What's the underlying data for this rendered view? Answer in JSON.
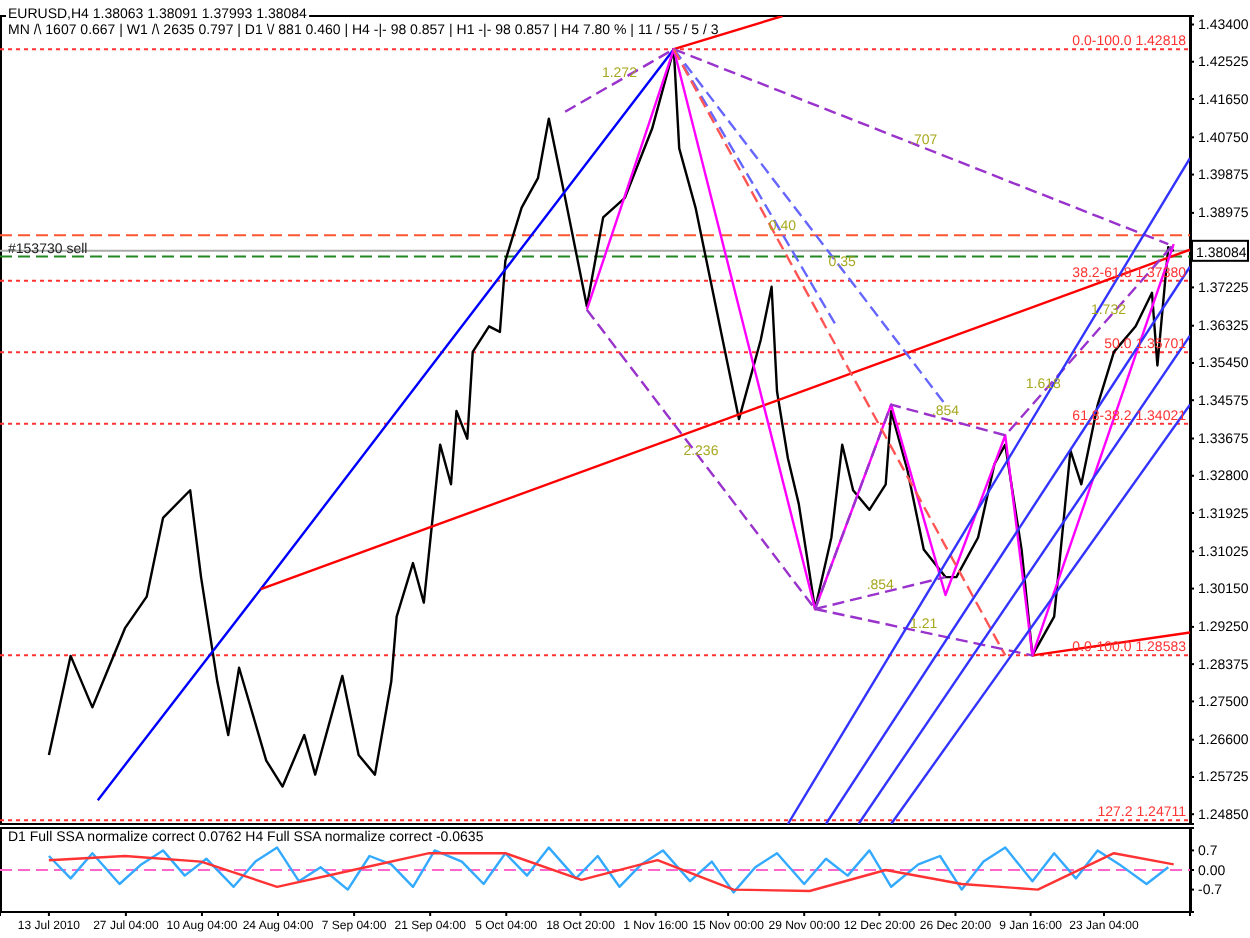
{
  "chart_data": [
    {
      "type": "line",
      "xlim": [
        "2010-07-04",
        "2011-02-08"
      ],
      "ylim": [
        1.2462,
        1.436
      ],
      "tick_labels": "y",
      "grid": false,
      "marker": "none",
      "yticks": [
        {
          "value": 1.434,
          "label": "1.43400"
        },
        {
          "value": 1.42525,
          "label": "1.42525"
        },
        {
          "value": 1.4165,
          "label": "1.41650"
        },
        {
          "value": 1.4075,
          "label": "1.40750"
        },
        {
          "value": 1.39875,
          "label": "1.39875"
        },
        {
          "value": 1.38975,
          "label": "1.38975"
        },
        {
          "value": 1.37225,
          "label": "1.37225"
        },
        {
          "value": 1.36325,
          "label": "1.36325"
        },
        {
          "value": 1.3545,
          "label": "1.35450"
        },
        {
          "value": 1.34575,
          "label": "1.34575"
        },
        {
          "value": 1.33675,
          "label": "1.33675"
        },
        {
          "value": 1.328,
          "label": "1.32800"
        },
        {
          "value": 1.31925,
          "label": "1.31925"
        },
        {
          "value": 1.31025,
          "label": "1.31025"
        },
        {
          "value": 1.3015,
          "label": "1.30150"
        },
        {
          "value": 1.2925,
          "label": "1.29250"
        },
        {
          "value": 1.28375,
          "label": "1.28375"
        },
        {
          "value": 1.275,
          "label": "1.27500"
        },
        {
          "value": 1.266,
          "label": "1.26600"
        },
        {
          "value": 1.25725,
          "label": "1.25725"
        },
        {
          "value": 1.2485,
          "label": "1.24850"
        }
      ],
      "series": [
        {
          "color": "#000000",
          "line_style": "solid",
          "x": [
            "2010-07-13",
            "2010-07-17",
            "2010-07-21",
            "2010-07-24",
            "2010-07-27",
            "2010-07-31",
            "2010-08-03",
            "2010-08-08",
            "2010-08-10",
            "2010-08-13",
            "2010-08-15",
            "2010-08-17",
            "2010-08-22",
            "2010-08-25",
            "2010-08-29",
            "2010-08-31",
            "2010-09-05",
            "2010-09-08",
            "2010-09-11",
            "2010-09-14",
            "2010-09-15",
            "2010-09-18",
            "2010-09-20",
            "2010-09-22",
            "2010-09-23",
            "2010-09-25",
            "2010-09-26",
            "2010-09-28",
            "2010-09-29",
            "2010-10-02",
            "2010-10-04",
            "2010-10-05",
            "2010-10-08",
            "2010-10-11",
            "2010-10-13",
            "2010-10-16",
            "2010-10-20",
            "2010-10-23",
            "2010-10-27",
            "2010-11-01",
            "2010-11-05",
            "2010-11-06",
            "2010-11-09",
            "2010-11-12",
            "2010-11-14",
            "2010-11-17",
            "2010-11-21",
            "2010-11-23",
            "2010-11-24",
            "2010-11-26",
            "2010-11-28",
            "2010-12-01",
            "2010-12-04",
            "2010-12-06",
            "2010-12-08",
            "2010-12-11",
            "2010-12-14",
            "2010-12-15",
            "2010-12-18",
            "2010-12-21",
            "2010-12-25",
            "2010-12-27",
            "2010-12-31",
            "2011-01-03",
            "2011-01-05",
            "2011-01-08",
            "2011-01-10",
            "2011-01-14",
            "2011-01-17",
            "2011-01-19",
            "2011-01-22",
            "2011-01-25",
            "2011-01-29",
            "2011-02-01",
            "2011-02-02",
            "2011-02-04",
            "2011-02-05"
          ],
          "values": [
            1.2624,
            1.2857,
            1.2736,
            1.2829,
            1.2922,
            1.2996,
            1.3181,
            1.3246,
            1.3042,
            1.2796,
            1.2671,
            1.2829,
            1.2611,
            1.255,
            1.2671,
            1.2578,
            1.281,
            1.2624,
            1.2578,
            1.2796,
            1.2949,
            1.3075,
            1.2982,
            1.3228,
            1.3353,
            1.326,
            1.3432,
            1.3367,
            1.3571,
            1.3631,
            1.3618,
            1.3785,
            1.391,
            1.3979,
            1.4119,
            1.3933,
            1.3678,
            1.3887,
            1.3933,
            1.4095,
            1.4282,
            1.4049,
            1.391,
            1.3724,
            1.3599,
            1.3413,
            1.3599,
            1.3724,
            1.3478,
            1.3321,
            1.3214,
            1.2967,
            1.3135,
            1.3353,
            1.3246,
            1.32,
            1.326,
            1.3432,
            1.3293,
            1.3107,
            1.3042,
            1.3042,
            1.3135,
            1.3307,
            1.3353,
            1.3107,
            1.2858,
            1.2949,
            1.3339,
            1.326,
            1.3446,
            1.3571,
            1.3631,
            1.371,
            1.3539,
            1.3817,
            1.3808
          ]
        },
        {
          "color": "#0000ff",
          "line_style": "solid",
          "x": [
            "2010-07-22",
            "2010-08-21",
            "2010-11-05"
          ],
          "values": [
            1.2518,
            1.3014,
            1.4282
          ]
        },
        {
          "color": "#ff0000",
          "line_style": "solid",
          "x": [
            "2010-08-21",
            "2011-02-08"
          ],
          "values": [
            1.3014,
            1.3811
          ]
        },
        {
          "color": "#ff0000",
          "line_style": "solid",
          "x": [
            "2010-11-05",
            "2010-11-25"
          ],
          "values": [
            1.4282,
            1.436
          ]
        },
        {
          "color": "#ff0000",
          "line_style": "solid",
          "x": [
            "2011-01-10",
            "2011-02-08"
          ],
          "values": [
            1.2858,
            1.2912
          ]
        },
        {
          "color": "#ff00ff",
          "line_style": "solid",
          "x": [
            "2010-10-20",
            "2010-11-05",
            "2010-12-01",
            "2010-12-15",
            "2010-12-25",
            "2011-01-05",
            "2011-01-10",
            "2011-02-05"
          ],
          "values": [
            1.367,
            1.4282,
            1.2967,
            1.3447,
            1.3,
            1.3375,
            1.2858,
            1.3824
          ]
        },
        {
          "color": "#9933cc",
          "line_style": "dashed",
          "x": [
            "2010-11-05",
            "2011-02-04"
          ],
          "values": [
            1.4282,
            1.3824
          ]
        },
        {
          "color": "#9933cc",
          "line_style": "dashed",
          "x": [
            "2010-10-16",
            "2010-11-05"
          ],
          "values": [
            1.4135,
            1.4282
          ]
        },
        {
          "color": "#9933cc",
          "line_style": "dashed",
          "x": [
            "2010-12-01",
            "2010-12-15",
            "2011-01-05",
            "2011-02-05"
          ],
          "values": [
            1.2967,
            1.3447,
            1.3375,
            1.3824
          ]
        },
        {
          "color": "#9933cc",
          "line_style": "dashed",
          "x": [
            "2010-10-20",
            "2010-12-01"
          ],
          "values": [
            1.367,
            1.2967
          ]
        },
        {
          "color": "#9933cc",
          "line_style": "dashed",
          "x": [
            "2010-12-01",
            "2010-12-25"
          ],
          "values": [
            1.2967,
            1.3042
          ]
        },
        {
          "color": "#9933cc",
          "line_style": "dashed",
          "x": [
            "2010-12-01",
            "2011-01-10"
          ],
          "values": [
            1.2967,
            1.2858
          ]
        },
        {
          "color": "#6666ff",
          "line_style": "dashed",
          "x": [
            "2010-11-05",
            "2010-12-05"
          ],
          "values": [
            1.4282,
            1.363
          ]
        },
        {
          "color": "#6666ff",
          "line_style": "dashed",
          "x": [
            "2010-11-05",
            "2010-12-25"
          ],
          "values": [
            1.4282,
            1.3447
          ]
        },
        {
          "color": "#ff5555",
          "line_style": "dashed",
          "x": [
            "2010-11-05",
            "2011-01-05"
          ],
          "values": [
            1.4282,
            1.2858
          ]
        },
        {
          "color": "#3333ff",
          "line_style": "solid",
          "x": [
            "2010-11-26",
            "2011-02-08"
          ],
          "values": [
            1.2462,
            1.4026
          ]
        },
        {
          "color": "#3333ff",
          "line_style": "solid",
          "x": [
            "2010-12-03",
            "2011-02-08"
          ],
          "values": [
            1.2462,
            1.3771
          ]
        },
        {
          "color": "#3333ff",
          "line_style": "solid",
          "x": [
            "2010-12-09",
            "2011-02-08"
          ],
          "values": [
            1.2462,
            1.3609
          ]
        },
        {
          "color": "#3333ff",
          "line_style": "solid",
          "x": [
            "2010-12-15",
            "2011-02-08"
          ],
          "values": [
            1.2462,
            1.3447
          ]
        }
      ],
      "ref_lines": [
        {
          "axis": "y",
          "value": 1.42818,
          "label": "0.0-100.0 1.42818",
          "color": "#ff3333",
          "line_style": "dotted"
        },
        {
          "axis": "y",
          "value": 1.3738,
          "label": "38.2-61.8 1.37380",
          "color": "#ff3333",
          "line_style": "dotted"
        },
        {
          "axis": "y",
          "value": 1.35701,
          "label": "50.0 1.35701",
          "color": "#ff3333",
          "line_style": "dotted"
        },
        {
          "axis": "y",
          "value": 1.34021,
          "label": "61.8-38.2 1.34021",
          "color": "#ff3333",
          "line_style": "dotted"
        },
        {
          "axis": "y",
          "value": 1.28583,
          "label": "0.0-100.0 1.28583",
          "color": "#ff3333",
          "line_style": "dotted"
        },
        {
          "axis": "y",
          "value": 1.24711,
          "label": "127.2 1.24711",
          "color": "#ff3333",
          "line_style": "dotted"
        },
        {
          "axis": "y",
          "value": 1.3845,
          "color": "#ff5533",
          "line_style": "dashed"
        },
        {
          "axis": "y",
          "value": 1.3795,
          "label": "#153730 sell",
          "color": "#228822",
          "line_style": "dashed"
        },
        {
          "axis": "y",
          "value": 1.38084,
          "label": "1.38084",
          "color": "#aaaaaa",
          "line_style": "solid"
        }
      ],
      "annotations": [
        "EURUSD,H4 1.38063 1.38091 1.37993 1.38084",
        "MN /\\ 1607 0.667 | W1 /\\ 2635 0.797 | D1 \\/ 881 0.460 | H4 -|- 98 0.857 | H1 -|- 98 0.857 | H4 7.80 % | 11 / 55 / 5 / 3",
        {
          "text": "1.272",
          "x": "2010-10-26",
          "y": 1.4208
        },
        {
          "text": ".707",
          "x": "2010-12-21",
          "y": 1.4051
        },
        {
          "text": "0.40",
          "x": "2010-11-25",
          "y": 1.3847
        },
        {
          "text": "0.35",
          "x": "2010-12-06",
          "y": 1.3764
        },
        {
          "text": "1.618",
          "x": "2011-01-12",
          "y": 1.3476
        },
        {
          "text": "1.732",
          "x": "2011-01-24",
          "y": 1.365
        },
        {
          "text": "2.236",
          "x": "2010-11-10",
          "y": 1.3319
        },
        {
          "text": ".854",
          "x": "2010-12-25",
          "y": 1.3413
        },
        {
          "text": ".854",
          "x": "2010-12-13",
          "y": 1.3004
        },
        {
          "text": "1.21",
          "x": "2010-12-21",
          "y": 1.2912
        }
      ]
    },
    {
      "type": "line",
      "xlim": [
        "2010-07-04",
        "2011-02-08"
      ],
      "ylim": [
        -1.5,
        1.5
      ],
      "grid": false,
      "marker": "none",
      "xticks": [
        {
          "value": "2010-07-13",
          "label": "13 Jul 2010"
        },
        {
          "value": "2010-07-27T04:00",
          "label": "27 Jul 04:00"
        },
        {
          "value": "2010-08-10T04:00",
          "label": "10 Aug 04:00"
        },
        {
          "value": "2010-08-24T04:00",
          "label": "24 Aug 04:00"
        },
        {
          "value": "2010-09-07T04:00",
          "label": "7 Sep 04:00"
        },
        {
          "value": "2010-09-21T04:00",
          "label": "21 Sep 04:00"
        },
        {
          "value": "2010-10-05T04:00",
          "label": "5 Oct 04:00"
        },
        {
          "value": "2010-10-18T20:00",
          "label": "18 Oct 20:00"
        },
        {
          "value": "2010-11-01T16:00",
          "label": "1 Nov 16:00"
        },
        {
          "value": "2010-11-15T00:00",
          "label": "15 Nov 00:00"
        },
        {
          "value": "2010-11-29T00:00",
          "label": "29 Nov 00:00"
        },
        {
          "value": "2010-12-12T20:00",
          "label": "12 Dec 20:00"
        },
        {
          "value": "2010-12-26T20:00",
          "label": "26 Dec 20:00"
        },
        {
          "value": "2011-01-09T16:00",
          "label": "9 Jan 16:00"
        },
        {
          "value": "2011-01-23T04:00",
          "label": "23 Jan 04:00"
        }
      ],
      "yticks": [
        0.7,
        {
          "value": 0,
          "label": "0.00"
        },
        -0.7
      ],
      "series": [
        {
          "color": "#33aaff",
          "line_style": "solid",
          "x": [
            "2010-07-13",
            "2010-07-17",
            "2010-07-21",
            "2010-07-26",
            "2010-07-30",
            "2010-08-03",
            "2010-08-07",
            "2010-08-11",
            "2010-08-16",
            "2010-08-20",
            "2010-08-24",
            "2010-08-28",
            "2010-09-01",
            "2010-09-06",
            "2010-09-10",
            "2010-09-14",
            "2010-09-18",
            "2010-09-22",
            "2010-09-27",
            "2010-10-01",
            "2010-10-05",
            "2010-10-09",
            "2010-10-13",
            "2010-10-18",
            "2010-10-22",
            "2010-10-26",
            "2010-10-30",
            "2010-11-03",
            "2010-11-08",
            "2010-11-12",
            "2010-11-16",
            "2010-11-20",
            "2010-11-24",
            "2010-11-29",
            "2010-12-03",
            "2010-12-07",
            "2010-12-11",
            "2010-12-15",
            "2010-12-20",
            "2010-12-24",
            "2010-12-28",
            "2011-01-01",
            "2011-01-05",
            "2011-01-10",
            "2011-01-14",
            "2011-01-18",
            "2011-01-22",
            "2011-01-26",
            "2011-01-31",
            "2011-02-04"
          ],
          "values": [
            0.5,
            -0.3,
            0.6,
            -0.5,
            0.2,
            0.7,
            -0.2,
            0.4,
            -0.6,
            0.3,
            0.8,
            -0.4,
            0.1,
            -0.7,
            0.5,
            0.2,
            -0.6,
            0.7,
            0.3,
            -0.5,
            0.6,
            -0.2,
            0.8,
            -0.3,
            0.5,
            -0.6,
            0.2,
            0.7,
            -0.4,
            0.3,
            -0.8,
            0.1,
            0.6,
            -0.5,
            0.4,
            -0.2,
            0.7,
            -0.6,
            0.2,
            0.5,
            -0.7,
            0.3,
            0.8,
            -0.4,
            0.6,
            -0.3,
            0.7,
            0.2,
            -0.5,
            0.1
          ]
        },
        {
          "color": "#ff3333",
          "line_style": "solid",
          "x": [
            "2010-07-13",
            "2010-07-27",
            "2010-08-10",
            "2010-08-24",
            "2010-09-07",
            "2010-09-21",
            "2010-10-05",
            "2010-10-19",
            "2010-11-02",
            "2010-11-16",
            "2010-11-30",
            "2010-12-14",
            "2010-12-28",
            "2011-01-11",
            "2011-01-25",
            "2011-02-05"
          ],
          "values": [
            0.35,
            0.5,
            0.3,
            -0.6,
            0,
            0.6,
            0.6,
            -0.35,
            0.35,
            -0.7,
            -0.75,
            0,
            -0.5,
            -0.7,
            0.6,
            0.2
          ]
        }
      ],
      "ref_lines": [
        {
          "axis": "y",
          "value": 0,
          "color": "#ff66cc",
          "line_style": "dashed"
        }
      ],
      "annotations": [
        "D1 Full SSA normalize correct 0.0762 H4 Full SSA normalize correct -0.0635"
      ]
    }
  ]
}
